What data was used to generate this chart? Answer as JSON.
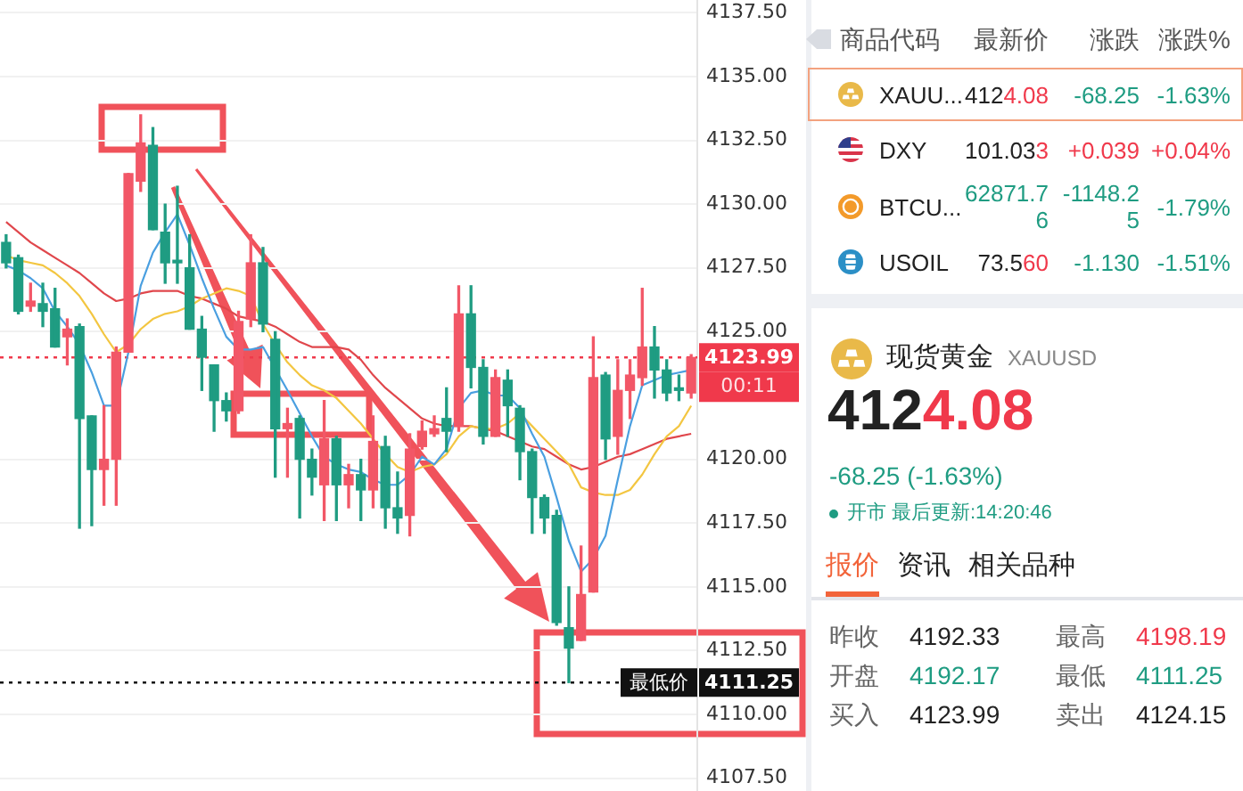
{
  "chart_data": [
    {
      "type": "candlestick",
      "categories": [
        null,
        null,
        null,
        null,
        null,
        null,
        null,
        null,
        null,
        null,
        null,
        null,
        null,
        null,
        null,
        null,
        null,
        null,
        null,
        null,
        null,
        null,
        null,
        null,
        null,
        null,
        null,
        null,
        null,
        null,
        null,
        null,
        null,
        null,
        null,
        null,
        null,
        null,
        null,
        null,
        null,
        null,
        null,
        null,
        null,
        null,
        null,
        null,
        null,
        null,
        null,
        null,
        null,
        null,
        null,
        null,
        null
      ],
      "ohlc": [
        [
          4128.5,
          4128.8,
          4127.5,
          4127.7
        ],
        [
          4127.9,
          4128.0,
          4125.7,
          4125.8
        ],
        [
          4126.0,
          4126.9,
          4125.8,
          4126.2
        ],
        [
          4126.1,
          4126.9,
          4125.2,
          4125.8
        ],
        [
          4125.9,
          4126.7,
          4124.4,
          4124.4
        ],
        [
          4124.8,
          4125.5,
          4123.7,
          4125.1
        ],
        [
          4125.2,
          4125.3,
          4117.3,
          4121.6
        ],
        [
          4121.7,
          4121.7,
          4117.4,
          4119.6
        ],
        [
          4119.6,
          4122.1,
          4118.2,
          4120.0
        ],
        [
          4120.0,
          4124.4,
          4118.2,
          4124.2
        ],
        [
          4124.2,
          4131.2,
          4124.2,
          4131.2
        ],
        [
          4130.9,
          4133.5,
          4130.5,
          4132.4
        ],
        [
          4132.3,
          4133.0,
          4129.0,
          4129.0
        ],
        [
          4128.9,
          4130.0,
          4126.9,
          4127.7
        ],
        [
          4127.8,
          4130.7,
          4126.9,
          4127.7
        ],
        [
          4127.5,
          4128.8,
          4125.1,
          4125.1
        ],
        [
          4125.1,
          4125.6,
          4122.7,
          4124.0
        ],
        [
          4123.7,
          4123.7,
          4121.1,
          4122.3
        ],
        [
          4122.3,
          4122.6,
          4121.5,
          4121.9
        ],
        [
          4121.9,
          4125.8,
          4121.8,
          4125.4
        ],
        [
          4125.5,
          4128.8,
          4125.2,
          4127.7
        ],
        [
          4127.7,
          4128.3,
          4125.0,
          4125.3
        ],
        [
          4124.7,
          4125.0,
          4119.3,
          4121.2
        ],
        [
          4121.2,
          4122.0,
          4119.3,
          4121.4
        ],
        [
          4121.6,
          4121.7,
          4117.7,
          4120.0
        ],
        [
          4120.0,
          4120.4,
          4118.6,
          4119.3
        ],
        [
          4119.0,
          4122.3,
          4117.6,
          4120.8
        ],
        [
          4120.8,
          4120.9,
          4117.6,
          4119.0
        ],
        [
          4119.0,
          4119.8,
          4118.1,
          4119.4
        ],
        [
          4119.4,
          4120.0,
          4117.6,
          4118.8
        ],
        [
          4118.8,
          4121.7,
          4118.1,
          4120.7
        ],
        [
          4120.5,
          4120.9,
          4117.3,
          4118.1
        ],
        [
          4118.1,
          4119.5,
          4117.1,
          4117.7
        ],
        [
          4117.8,
          4121.0,
          4117.0,
          4120.4
        ],
        [
          4120.5,
          4121.5,
          4120.4,
          4121.1
        ],
        [
          4121.0,
          4121.7,
          4120.9,
          4121.2
        ],
        [
          4121.6,
          4122.8,
          4120.3,
          4121.1
        ],
        [
          4121.3,
          4126.8,
          4121.1,
          4125.7
        ],
        [
          4125.7,
          4126.8,
          4122.8,
          4123.6
        ],
        [
          4123.6,
          4123.9,
          4120.6,
          4120.9
        ],
        [
          4120.9,
          4123.5,
          4120.9,
          4123.2
        ],
        [
          4123.1,
          4123.5,
          4120.9,
          4122.1
        ],
        [
          4122.0,
          4122.1,
          4119.2,
          4120.3
        ],
        [
          4120.3,
          4120.4,
          4117.1,
          4118.5
        ],
        [
          4118.5,
          4118.6,
          4117.1,
          4117.7
        ],
        [
          4117.8,
          4118.0,
          4113.5,
          4113.6
        ],
        [
          4113.4,
          4115.0,
          4111.25,
          4112.6
        ],
        [
          4112.9,
          4116.6,
          4112.9,
          4114.7
        ],
        [
          4114.8,
          4124.8,
          4114.8,
          4123.2
        ],
        [
          4123.3,
          4123.4,
          4120.0,
          4120.8
        ],
        [
          4120.9,
          4123.9,
          4120.2,
          4122.7
        ],
        [
          4122.7,
          4123.9,
          4121.6,
          4123.3
        ],
        [
          4123.2,
          4126.7,
          4122.9,
          4124.4
        ],
        [
          4124.4,
          4125.2,
          4122.4,
          4123.5
        ],
        [
          4123.5,
          4123.9,
          4122.3,
          4122.6
        ],
        [
          4122.8,
          4123.3,
          4122.3,
          4122.7
        ],
        [
          4122.6,
          4124.1,
          4122.4,
          4123.99
        ]
      ],
      "colors": [
        "#1f9c82",
        "#1f9c82",
        "#f25767",
        "#1f9c82",
        "#1f9c82",
        "#f25767",
        "#1f9c82",
        "#1f9c82",
        "#f25767",
        "#f25767",
        "#f25767",
        "#f25767",
        "#1f9c82",
        "#1f9c82",
        "#1f9c82",
        "#1f9c82",
        "#1f9c82",
        "#1f9c82",
        "#1f9c82",
        "#f25767",
        "#f25767",
        "#1f9c82",
        "#1f9c82",
        "#f25767",
        "#1f9c82",
        "#1f9c82",
        "#f25767",
        "#1f9c82",
        "#f25767",
        "#1f9c82",
        "#f25767",
        "#1f9c82",
        "#1f9c82",
        "#f25767",
        "#f25767",
        "#f25767",
        "#1f9c82",
        "#f25767",
        "#1f9c82",
        "#1f9c82",
        "#f25767",
        "#1f9c82",
        "#1f9c82",
        "#1f9c82",
        "#1f9c82",
        "#1f9c82",
        "#1f9c82",
        "#f25767",
        "#f25767",
        "#1f9c82",
        "#f25767",
        "#f25767",
        "#f25767",
        "#1f9c82",
        "#1f9c82",
        "#1f9c82",
        "#f25767"
      ],
      "series": [
        {
          "type": "line",
          "color": "#4a9fe0",
          "values": [
            4127.6,
            4127.4,
            4127.1,
            4126.7,
            4125.8,
            4125.2,
            4124.5,
            4123.4,
            4122.1,
            4122.1,
            4124.2,
            4126.8,
            4128.1,
            4128.9,
            4129.6,
            4128.4,
            4127.1,
            4125.9,
            4124.8,
            4124.3,
            4124.3,
            4124.4,
            null,
            4122.7,
            4121.8,
            4120.9,
            4120.1,
            4119.8,
            4119.6,
            4119.5,
            4119.2,
            4119.0,
            4119.0,
            4119.4,
            4120.1,
            4119.8,
            4120.4,
            4122.0,
            4122.6,
            4122.7,
            4122.5,
            4122.5,
            4122.0,
            4121.0,
            4120.1,
            4118.5,
            4116.8,
            4115.6,
            4116.1,
            4117.0,
            4119.2,
            4121.3,
            4122.9,
            4123.1,
            4123.3,
            4123.4,
            4123.5
          ]
        },
        {
          "type": "line",
          "color": "#f3c641",
          "values": [
            4128.0,
            4127.8,
            4127.7,
            4127.6,
            4127.3,
            4126.9,
            4126.4,
            4125.7,
            4124.9,
            4124.2,
            4124.5,
            4125.1,
            4125.5,
            4125.7,
            4125.8,
            4126.0,
            4126.3,
            4126.5,
            4126.7,
            4126.6,
            4126.4,
            4125.3,
            4124.5,
            4123.8,
            4123.3,
            4122.9,
            4122.7,
            4122.4,
            4121.9,
            4121.4,
            4120.8,
            4120.2,
            4119.7,
            4119.5,
            4119.7,
            4119.8,
            4120.2,
            4120.9,
            4121.3,
            4121.2,
            4121.2,
            4121.4,
            4121.8,
            4121.3,
            4120.8,
            4120.3,
            4119.8,
            4118.9,
            4118.7,
            4118.6,
            4118.6,
            4118.8,
            4119.4,
            4120.2,
            4120.9,
            4121.3,
            4122.1
          ]
        },
        {
          "type": "line",
          "color": "#e0474c",
          "values": [
            4129.3,
            4128.9,
            4128.5,
            4128.2,
            4127.9,
            4127.6,
            4127.3,
            4126.9,
            4126.5,
            4126.2,
            4126.3,
            4126.5,
            4126.6,
            4126.6,
            4126.6,
            4126.4,
            4126.3,
            4126.1,
            4125.9,
            4125.6,
            4125.5,
            4125.4,
            4125.2,
            4124.9,
            4124.6,
            4124.4,
            4124.4,
            4124.4,
            4124.3,
            4123.9,
            4123.3,
            4122.8,
            4122.4,
            4122.0,
            4121.6,
            4121.4,
            4121.3,
            4121.3,
            4121.3,
            4121.2,
            4121.1,
            4120.9,
            4120.7,
            4120.5,
            4120.4,
            4120.1,
            4119.8,
            4119.6,
            4119.7,
            4119.9,
            4120.1,
            4120.2,
            4120.4,
            4120.6,
            4120.8,
            4120.9,
            4121.0
          ]
        }
      ],
      "ylim": [
        4107,
        4138
      ],
      "yticks": [
        {
          "value": 4107.5,
          "label": "4107.50"
        },
        {
          "value": 4110,
          "label": "4110.00"
        },
        {
          "value": 4112.5,
          "label": "4112.50"
        },
        {
          "value": 4115,
          "label": "4115.00"
        },
        {
          "value": 4117.5,
          "label": "4117.50"
        },
        {
          "value": 4120,
          "label": "4120.00"
        },
        {
          "value": 4125,
          "label": "4125.00"
        },
        {
          "value": 4127.5,
          "label": "4127.50"
        },
        {
          "value": 4130,
          "label": "4130.00"
        },
        {
          "value": 4132.5,
          "label": "4132.50"
        },
        {
          "value": 4135,
          "label": "4135.00"
        },
        {
          "value": 4137.5,
          "label": "4137.50"
        }
      ],
      "grid": "y",
      "tick_labels": "y",
      "marker": "none",
      "ref_lines": [
        {
          "axis": "y",
          "value": 4123.99,
          "label": "4123.99",
          "color": "#f0394b",
          "line_style": "dotted"
        },
        {
          "axis": "y",
          "value": 4111.25,
          "label": "4111.25",
          "color": "#111111",
          "line_style": "dotted"
        }
      ],
      "annotations": [
        "00:11",
        {
          "text": "最低价",
          "y": 4111.25
        }
      ]
    },
    {
      "type": "other",
      "annotations": [
        "商品代码",
        "最新价",
        "涨跌",
        "涨跌%",
        "XAUU...",
        "4124.08",
        "-68.25",
        "-1.63%",
        "DXY",
        "101.033",
        "+0.039",
        "+0.04%",
        "BTCU...",
        "62871.76",
        "-1148.25",
        "-1.79%",
        "USOIL",
        "73.560",
        "-1.130",
        "-1.51%",
        "现货黄金",
        "XAUUSD",
        "4124.08",
        "-68.25 (-1.63%)",
        "开市",
        "最后更新:14:20:46",
        "报价",
        "资讯",
        "相关品种",
        "昨收",
        "4192.33",
        "最高",
        "4198.19",
        "开盘",
        "4192.17",
        "最低",
        "4111.25",
        "买入",
        "4123.99",
        "卖出",
        "4124.15"
      ]
    }
  ]
}
